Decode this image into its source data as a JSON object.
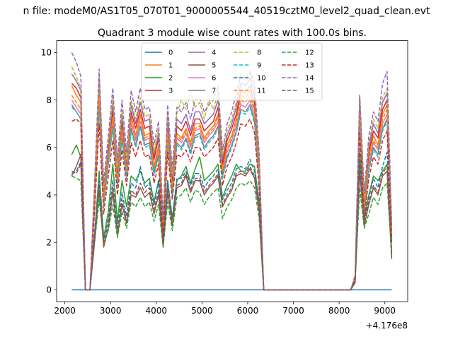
{
  "chart_data": {
    "type": "line",
    "suptitle": "n file: modeM0/AS1T05_070T01_9000005544_40519cztM0_level2_quad_clean.evt",
    "title": "Quadrant 3 module wise count rates with 100.0s bins.",
    "xlabel": "",
    "ylabel": "",
    "offset_text": "+4.176e8",
    "xlim": [
      1820,
      9500
    ],
    "ylim": [
      -0.5,
      10.5
    ],
    "xticks": [
      2000,
      3000,
      4000,
      5000,
      6000,
      7000,
      8000,
      9000
    ],
    "yticks": [
      0,
      2,
      4,
      6,
      8,
      10
    ],
    "legend_location": "upper center",
    "x": [
      2150,
      2250,
      2350,
      2450,
      2550,
      2650,
      2750,
      2850,
      2950,
      3050,
      3150,
      3250,
      3350,
      3450,
      3550,
      3650,
      3750,
      3850,
      3950,
      4050,
      4150,
      4250,
      4350,
      4450,
      4550,
      4650,
      4750,
      4850,
      4950,
      5050,
      5150,
      5250,
      5350,
      5450,
      5550,
      5650,
      5750,
      5850,
      5950,
      6050,
      6150,
      6250,
      6350,
      6450,
      6550,
      6650,
      6750,
      6850,
      6950,
      7050,
      7150,
      7250,
      7350,
      7450,
      7550,
      7650,
      7750,
      7850,
      7950,
      8050,
      8150,
      8250,
      8350,
      8450,
      8550,
      8650,
      8750,
      8850,
      8950,
      9050,
      9150
    ],
    "series": [
      {
        "name": "0",
        "color": "#1f77b4",
        "dash": false,
        "values": [
          0,
          0,
          0,
          0,
          0,
          0,
          0,
          0,
          0,
          0,
          0,
          0,
          0,
          0,
          0,
          0,
          0,
          0,
          0,
          0,
          0,
          0,
          0,
          0,
          0,
          0,
          0,
          0,
          0,
          0,
          0,
          0,
          0,
          0,
          0,
          0,
          0,
          0,
          0,
          0,
          0,
          0,
          0,
          0,
          0,
          0,
          0,
          0,
          0,
          0,
          0,
          0,
          0,
          0,
          0,
          0,
          0,
          0,
          0,
          0,
          0,
          0,
          0,
          0,
          0,
          0,
          0,
          0,
          0,
          0,
          0
        ]
      },
      {
        "name": "1",
        "color": "#ff7f0e",
        "dash": false,
        "values": [
          8.6,
          8.2,
          7.9,
          0,
          0,
          3.8,
          8.4,
          3.9,
          5.7,
          7.4,
          4.6,
          6.9,
          5.1,
          7.3,
          6.5,
          7.4,
          6.5,
          6.6,
          5.2,
          6.1,
          2.6,
          6.8,
          4.4,
          6.6,
          6.4,
          6.8,
          6.2,
          7.0,
          7.0,
          6.4,
          6.7,
          6.9,
          7.4,
          5.1,
          6.1,
          6.5,
          7.2,
          8.2,
          8.1,
          8.4,
          7.6,
          5.0,
          0,
          0,
          0,
          0,
          0,
          0,
          0,
          0,
          0,
          0,
          0,
          0,
          0,
          0,
          0,
          0,
          0,
          0,
          0,
          0,
          0.5,
          7.6,
          3.4,
          5.6,
          6.5,
          6.1,
          7.4,
          7.8,
          2.3
        ]
      },
      {
        "name": "2",
        "color": "#2ca02c",
        "dash": false,
        "values": [
          5.7,
          6.1,
          5.6,
          0,
          0,
          2.3,
          5.0,
          2.2,
          3.3,
          5.3,
          2.9,
          4.6,
          3.5,
          4.8,
          4.6,
          5.0,
          4.5,
          4.7,
          3.7,
          4.6,
          1.8,
          4.6,
          3.0,
          4.6,
          4.8,
          5.2,
          4.5,
          5.1,
          5.6,
          4.6,
          4.8,
          5.0,
          5.3,
          3.9,
          4.4,
          4.8,
          5.3,
          5.0,
          5.0,
          5.3,
          5.2,
          3.7,
          0,
          0,
          0,
          0,
          0,
          0,
          0,
          0,
          0,
          0,
          0,
          0,
          0,
          0,
          0,
          0,
          0,
          0,
          0,
          0,
          0.4,
          5.8,
          3.0,
          4.0,
          4.8,
          4.6,
          5.0,
          5.3,
          1.5
        ]
      },
      {
        "name": "3",
        "color": "#d62728",
        "dash": false,
        "values": [
          8.7,
          8.5,
          8.1,
          0,
          0,
          4.0,
          8.7,
          4.0,
          5.9,
          7.6,
          4.9,
          7.1,
          5.2,
          7.5,
          6.8,
          7.6,
          6.8,
          6.9,
          5.5,
          6.4,
          2.7,
          7.0,
          4.6,
          6.9,
          6.7,
          7.1,
          6.5,
          7.2,
          7.2,
          6.7,
          6.9,
          7.1,
          7.7,
          5.3,
          6.3,
          6.8,
          7.4,
          8.4,
          8.3,
          8.6,
          7.9,
          5.2,
          0,
          0,
          0,
          0,
          0,
          0,
          0,
          0,
          0,
          0,
          0,
          0,
          0,
          0,
          0,
          0,
          0,
          0,
          0,
          0,
          0.5,
          7.9,
          3.6,
          5.8,
          6.7,
          6.4,
          7.6,
          8.0,
          2.4
        ]
      },
      {
        "name": "4",
        "color": "#9467bd",
        "dash": false,
        "values": [
          9.1,
          8.8,
          8.4,
          0,
          0,
          4.2,
          8.9,
          4.2,
          6.1,
          7.9,
          5.1,
          7.4,
          5.4,
          7.8,
          7.0,
          7.9,
          7.1,
          7.2,
          5.7,
          6.6,
          2.8,
          7.3,
          4.8,
          7.2,
          7.0,
          7.4,
          6.7,
          7.5,
          7.5,
          7.0,
          7.2,
          7.4,
          8.0,
          5.5,
          6.5,
          7.0,
          7.7,
          8.7,
          8.6,
          8.9,
          8.2,
          5.4,
          0,
          0,
          0,
          0,
          0,
          0,
          0,
          0,
          0,
          0,
          0,
          0,
          0,
          0,
          0,
          0,
          0,
          0,
          0,
          0,
          0.5,
          8.1,
          3.8,
          6.0,
          7.0,
          6.6,
          7.9,
          8.3,
          2.5
        ]
      },
      {
        "name": "5",
        "color": "#8c564b",
        "dash": false,
        "values": [
          4.8,
          5.2,
          5.7,
          0,
          0,
          2.0,
          4.2,
          1.8,
          2.6,
          4.1,
          2.3,
          3.6,
          2.8,
          4.0,
          3.9,
          4.3,
          3.9,
          4.1,
          3.2,
          4.0,
          1.9,
          4.1,
          2.7,
          4.3,
          4.4,
          4.8,
          4.1,
          4.6,
          4.6,
          4.0,
          4.3,
          4.5,
          4.8,
          3.5,
          3.9,
          4.2,
          4.8,
          4.9,
          4.8,
          5.1,
          4.7,
          3.3,
          0,
          0,
          0,
          0,
          0,
          0,
          0,
          0,
          0,
          0,
          0,
          0,
          0,
          0,
          0,
          0,
          0,
          0,
          0,
          0,
          0.3,
          5.0,
          2.7,
          3.6,
          4.3,
          4.0,
          4.8,
          5.0,
          1.3
        ]
      },
      {
        "name": "6",
        "color": "#e377c2",
        "dash": false,
        "values": [
          8.0,
          7.7,
          7.4,
          0,
          0,
          3.7,
          8.0,
          3.7,
          5.5,
          7.1,
          4.5,
          6.6,
          4.9,
          7.0,
          6.3,
          7.1,
          6.3,
          6.4,
          5.0,
          5.9,
          2.5,
          6.5,
          4.2,
          6.4,
          6.2,
          6.6,
          6.0,
          6.7,
          6.8,
          6.2,
          6.5,
          6.7,
          7.1,
          4.9,
          5.8,
          6.3,
          6.9,
          7.8,
          7.7,
          8.0,
          7.3,
          4.8,
          0,
          0,
          0,
          0,
          0,
          0,
          0,
          0,
          0,
          0,
          0,
          0,
          0,
          0,
          0,
          0,
          0,
          0,
          0,
          0,
          0.4,
          7.3,
          3.3,
          5.3,
          6.2,
          5.9,
          7.0,
          7.4,
          2.2
        ]
      },
      {
        "name": "7",
        "color": "#7f7f7f",
        "dash": false,
        "values": [
          7.8,
          7.5,
          7.2,
          0,
          0,
          3.6,
          7.8,
          3.6,
          5.3,
          6.9,
          4.4,
          6.4,
          4.8,
          6.8,
          6.1,
          6.9,
          6.1,
          6.2,
          4.9,
          5.7,
          2.4,
          6.3,
          4.1,
          6.2,
          6.0,
          6.4,
          5.8,
          6.5,
          6.6,
          6.0,
          6.3,
          6.5,
          6.9,
          4.8,
          5.6,
          6.1,
          6.7,
          7.6,
          7.5,
          7.8,
          7.1,
          4.7,
          0,
          0,
          0,
          0,
          0,
          0,
          0,
          0,
          0,
          0,
          0,
          0,
          0,
          0,
          0,
          0,
          0,
          0,
          0,
          0,
          0.4,
          7.1,
          3.2,
          5.1,
          6.0,
          5.7,
          6.8,
          7.2,
          2.1
        ]
      },
      {
        "name": "8",
        "color": "#bcbd22",
        "dash": true,
        "values": [
          9.4,
          9.0,
          8.5,
          0,
          0,
          4.3,
          9.0,
          4.3,
          6.2,
          8.1,
          5.2,
          7.6,
          5.5,
          8.0,
          7.2,
          8.1,
          7.3,
          7.4,
          5.8,
          6.8,
          2.9,
          7.5,
          4.9,
          7.4,
          8.0,
          7.6,
          8.3,
          7.7,
          7.9,
          7.2,
          8.0,
          7.6,
          8.3,
          5.7,
          6.7,
          7.2,
          7.9,
          9.0,
          8.8,
          9.1,
          8.4,
          5.6,
          0,
          0,
          0,
          0,
          0,
          0,
          0,
          0,
          0,
          0,
          0,
          0,
          0,
          0,
          0,
          0,
          0,
          0,
          0,
          0,
          0.6,
          8.2,
          3.9,
          6.2,
          7.2,
          6.8,
          8.1,
          8.5,
          2.6
        ]
      },
      {
        "name": "9",
        "color": "#17becf",
        "dash": true,
        "values": [
          7.7,
          7.5,
          7.2,
          0,
          0,
          3.6,
          7.7,
          3.6,
          5.3,
          6.8,
          4.4,
          6.3,
          4.7,
          6.7,
          6.0,
          6.8,
          6.0,
          6.1,
          4.8,
          5.6,
          2.4,
          6.2,
          4.0,
          6.1,
          5.9,
          6.3,
          5.7,
          6.4,
          6.5,
          5.9,
          6.2,
          6.4,
          6.8,
          4.7,
          5.5,
          6.0,
          6.6,
          7.5,
          7.4,
          7.7,
          7.0,
          4.6,
          0,
          0,
          0,
          0,
          0,
          0,
          0,
          0,
          0,
          0,
          0,
          0,
          0,
          0,
          0,
          0,
          0,
          0,
          0,
          0,
          0.4,
          7.0,
          3.1,
          5.0,
          5.9,
          5.6,
          6.7,
          7.1,
          2.1
        ]
      },
      {
        "name": "10",
        "color": "#1f77b4",
        "dash": true,
        "values": [
          4.9,
          5.0,
          5.4,
          0,
          0,
          2.4,
          4.6,
          2.1,
          3.0,
          4.6,
          2.6,
          4.1,
          3.1,
          4.5,
          4.3,
          5.2,
          4.3,
          4.5,
          3.6,
          4.6,
          2.0,
          4.6,
          3.0,
          4.7,
          4.7,
          5.0,
          4.4,
          4.9,
          4.9,
          4.3,
          4.6,
          4.8,
          5.1,
          3.8,
          4.2,
          4.5,
          5.1,
          5.2,
          5.1,
          5.5,
          5.0,
          3.6,
          0,
          0,
          0,
          0,
          0,
          0,
          0,
          0,
          0,
          0,
          0,
          0,
          0,
          0,
          0,
          0,
          0,
          0,
          0,
          0,
          0.3,
          5.4,
          2.9,
          3.9,
          4.7,
          4.3,
          5.2,
          5.8,
          1.6
        ]
      },
      {
        "name": "11",
        "color": "#ff7f0e",
        "dash": true,
        "values": [
          8.2,
          7.9,
          7.6,
          0,
          0,
          3.8,
          8.2,
          3.8,
          5.6,
          7.3,
          4.6,
          6.8,
          5.0,
          7.2,
          6.4,
          7.3,
          6.4,
          6.5,
          5.1,
          6.0,
          2.5,
          6.6,
          4.3,
          6.5,
          6.3,
          6.7,
          6.1,
          6.8,
          6.9,
          6.3,
          6.6,
          6.8,
          7.3,
          5.0,
          5.9,
          6.4,
          7.0,
          8.0,
          7.9,
          8.2,
          7.5,
          4.9,
          0,
          0,
          0,
          0,
          0,
          0,
          0,
          0,
          0,
          0,
          0,
          0,
          0,
          0,
          0,
          0,
          0,
          0,
          0,
          0,
          0.4,
          7.5,
          3.4,
          5.4,
          6.3,
          6.0,
          7.2,
          7.6,
          2.3
        ]
      },
      {
        "name": "12",
        "color": "#2ca02c",
        "dash": true,
        "values": [
          4.8,
          4.7,
          4.6,
          0,
          0,
          2.0,
          3.8,
          2.0,
          2.5,
          3.6,
          2.2,
          3.3,
          2.6,
          3.7,
          3.5,
          3.9,
          3.5,
          3.7,
          2.9,
          3.6,
          1.8,
          3.7,
          2.5,
          3.9,
          4.0,
          4.3,
          3.7,
          4.2,
          4.1,
          3.6,
          3.9,
          4.1,
          4.3,
          3.0,
          3.5,
          3.8,
          4.3,
          4.5,
          4.4,
          4.6,
          4.3,
          3.0,
          0,
          0,
          0,
          0,
          0,
          0,
          0,
          0,
          0,
          0,
          0,
          0,
          0,
          0,
          0,
          0,
          0,
          0,
          0,
          0,
          0.3,
          4.3,
          2.6,
          3.2,
          3.9,
          3.6,
          4.3,
          4.5,
          1.4
        ]
      },
      {
        "name": "13",
        "color": "#d62728",
        "dash": true,
        "values": [
          7.1,
          7.2,
          7.0,
          0,
          0,
          3.3,
          7.0,
          3.2,
          4.8,
          6.3,
          4.0,
          5.9,
          4.4,
          6.2,
          5.6,
          6.3,
          5.6,
          5.7,
          4.5,
          5.3,
          2.3,
          5.8,
          3.8,
          5.7,
          5.6,
          5.9,
          5.4,
          6.0,
          6.0,
          5.6,
          5.8,
          6.0,
          6.4,
          4.4,
          5.2,
          5.6,
          6.2,
          7.0,
          6.9,
          7.2,
          6.6,
          4.3,
          0,
          0,
          0,
          0,
          0,
          0,
          0,
          0,
          0,
          0,
          0,
          0,
          0,
          0,
          0,
          0,
          0,
          0,
          0,
          0,
          0.4,
          6.6,
          3.0,
          4.7,
          5.6,
          5.3,
          6.3,
          6.7,
          2.0
        ]
      },
      {
        "name": "14",
        "color": "#9467bd",
        "dash": true,
        "values": [
          10.0,
          9.6,
          9.0,
          0,
          0,
          4.5,
          9.3,
          4.5,
          6.5,
          8.5,
          5.5,
          8.0,
          5.8,
          8.4,
          7.5,
          8.5,
          7.6,
          7.7,
          6.1,
          7.1,
          3.0,
          7.8,
          5.1,
          7.7,
          7.5,
          7.9,
          7.2,
          8.0,
          8.1,
          7.5,
          7.8,
          8.0,
          8.6,
          5.9,
          7.0,
          7.5,
          8.3,
          9.1,
          8.9,
          9.2,
          8.7,
          5.8,
          0,
          0,
          0,
          0,
          0,
          0,
          0,
          0,
          0,
          0,
          0,
          0,
          0,
          0,
          0,
          0,
          0,
          0,
          0,
          0,
          0.6,
          8.2,
          4.1,
          6.5,
          7.5,
          7.1,
          8.7,
          9.2,
          2.7
        ]
      },
      {
        "name": "15",
        "color": "#8c564b",
        "dash": true,
        "values": [
          5.0,
          4.9,
          5.3,
          0,
          0,
          2.2,
          4.4,
          2.0,
          2.8,
          4.3,
          2.4,
          3.8,
          2.9,
          4.2,
          4.0,
          4.5,
          4.1,
          4.3,
          3.4,
          4.2,
          1.9,
          4.3,
          2.8,
          4.4,
          4.5,
          4.9,
          4.2,
          4.7,
          4.7,
          4.1,
          4.4,
          4.6,
          4.9,
          3.6,
          4.0,
          4.3,
          4.9,
          5.0,
          4.9,
          5.2,
          4.8,
          3.4,
          0,
          0,
          0,
          0,
          0,
          0,
          0,
          0,
          0,
          0,
          0,
          0,
          0,
          0,
          0,
          0,
          0,
          0,
          0,
          0,
          0.3,
          5.1,
          2.8,
          3.7,
          4.4,
          4.1,
          4.9,
          5.2,
          1.3
        ]
      }
    ]
  }
}
